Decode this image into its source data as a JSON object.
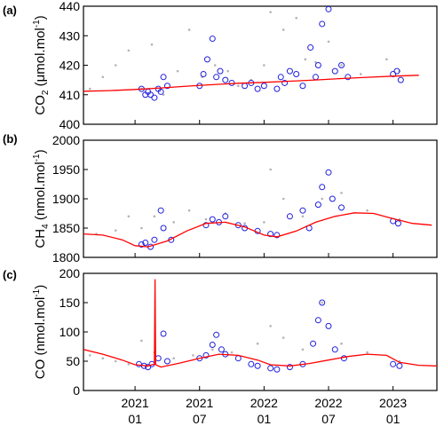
{
  "chart_data": [
    {
      "type": "scatter",
      "panel_label": "(a)",
      "ylabel_main": "CO",
      "ylabel_sub": "2",
      "ylabel_unit": "(μmol.mol",
      "ylabel_sup": "-1",
      "ylabel_close": ")",
      "ylim": [
        400,
        440
      ],
      "yticks": [
        400,
        410,
        420,
        430,
        440
      ],
      "series": [
        {
          "kind": "background",
          "color": "#b3b3b3",
          "marker": "dot",
          "x": [
            2020.65,
            2020.75,
            2020.85,
            2020.95,
            2021.05,
            2021.13,
            2021.22,
            2021.33,
            2021.42,
            2021.52,
            2021.62,
            2021.72,
            2021.8,
            2021.9,
            2022.0,
            2022.05,
            2022.15,
            2022.25,
            2022.32,
            2022.4,
            2022.5,
            2022.6,
            2022.75,
            2022.95,
            2023.05
          ],
          "y": [
            412,
            416,
            420,
            425,
            412,
            427,
            410,
            418,
            432,
            416,
            420,
            418,
            413,
            415,
            420,
            438,
            432,
            436,
            422,
            421,
            428,
            420,
            417,
            422,
            418
          ]
        },
        {
          "kind": "observations",
          "color": "#1f1fdd",
          "marker": "circle",
          "x": [
            2021.05,
            2021.08,
            2021.1,
            2021.12,
            2021.15,
            2021.18,
            2021.2,
            2021.22,
            2021.25,
            2021.5,
            2021.53,
            2021.56,
            2021.6,
            2021.63,
            2021.66,
            2021.7,
            2021.75,
            2021.85,
            2021.9,
            2021.95,
            2022.0,
            2022.1,
            2022.13,
            2022.16,
            2022.2,
            2022.25,
            2022.3,
            2022.36,
            2022.4,
            2022.42,
            2022.45,
            2022.5,
            2022.55,
            2022.6,
            2022.65,
            2023.0,
            2023.03,
            2023.06
          ],
          "y": [
            412,
            410,
            411,
            410,
            409,
            412,
            411,
            416,
            413,
            413,
            417,
            422,
            429,
            416,
            418,
            415,
            414,
            413,
            414,
            412,
            413,
            412,
            416,
            414,
            418,
            417,
            413,
            426,
            416,
            420,
            434,
            439,
            418,
            420,
            416,
            417,
            418,
            415
          ]
        },
        {
          "kind": "baseline",
          "color": "#ff0000",
          "marker": "line",
          "x": [
            2020.6,
            2020.8,
            2021.0,
            2021.2,
            2021.4,
            2021.6,
            2021.8,
            2022.0,
            2022.2,
            2022.4,
            2022.6,
            2022.8,
            2023.0,
            2023.2
          ],
          "y": [
            411.2,
            411.4,
            411.8,
            412.3,
            412.9,
            413.4,
            413.9,
            414.2,
            414.6,
            415.0,
            415.5,
            415.9,
            416.3,
            416.6
          ]
        }
      ]
    },
    {
      "type": "scatter",
      "panel_label": "(b)",
      "ylabel_main": "CH",
      "ylabel_sub": "4",
      "ylabel_unit": "(nmol.mol",
      "ylabel_sup": "-1",
      "ylabel_close": ")",
      "ylim": [
        1800,
        2000
      ],
      "yticks": [
        1800,
        1850,
        1900,
        1950,
        2000
      ],
      "series": [
        {
          "kind": "background",
          "color": "#b3b3b3",
          "marker": "dot",
          "x": [
            2020.7,
            2020.85,
            2020.95,
            2021.05,
            2021.15,
            2021.3,
            2021.42,
            2021.55,
            2021.7,
            2021.85,
            2022.0,
            2022.05,
            2022.15,
            2022.3,
            2022.45,
            2022.6,
            2022.8,
            2023.05
          ],
          "y": [
            1840,
            1846,
            1870,
            1850,
            1870,
            1860,
            1880,
            1865,
            1875,
            1858,
            1860,
            1950,
            1900,
            1870,
            1900,
            1910,
            1880,
            1865
          ]
        },
        {
          "kind": "observations",
          "color": "#1f1fdd",
          "marker": "circle",
          "x": [
            2021.05,
            2021.08,
            2021.12,
            2021.15,
            2021.2,
            2021.22,
            2021.28,
            2021.55,
            2021.6,
            2021.65,
            2021.7,
            2021.8,
            2021.85,
            2021.95,
            2022.05,
            2022.1,
            2022.2,
            2022.3,
            2022.35,
            2022.42,
            2022.45,
            2022.5,
            2022.53,
            2022.6,
            2023.0,
            2023.04
          ],
          "y": [
            1822,
            1825,
            1818,
            1830,
            1880,
            1850,
            1830,
            1855,
            1865,
            1860,
            1870,
            1855,
            1850,
            1845,
            1840,
            1838,
            1870,
            1880,
            1850,
            1890,
            1920,
            1945,
            1900,
            1885,
            1862,
            1858
          ]
        },
        {
          "kind": "baseline",
          "color": "#ff0000",
          "marker": "line",
          "x": [
            2020.6,
            2020.75,
            2020.9,
            2021.0,
            2021.1,
            2021.25,
            2021.4,
            2021.55,
            2021.7,
            2021.85,
            2022.0,
            2022.1,
            2022.25,
            2022.4,
            2022.55,
            2022.7,
            2022.85,
            2023.0,
            2023.15,
            2023.3
          ],
          "y": [
            1840,
            1838,
            1830,
            1820,
            1818,
            1828,
            1845,
            1858,
            1860,
            1852,
            1838,
            1835,
            1845,
            1860,
            1870,
            1876,
            1875,
            1866,
            1858,
            1855
          ]
        }
      ]
    },
    {
      "type": "scatter",
      "panel_label": "(c)",
      "ylabel_main": "CO",
      "ylabel_sub": "",
      "ylabel_unit": "(nmol.mol",
      "ylabel_sup": "-1",
      "ylabel_close": ")",
      "ylim": [
        0,
        200
      ],
      "yticks": [
        0,
        50,
        100,
        150,
        200
      ],
      "xticks": [
        {
          "x": 2021.0,
          "year": "2021",
          "month": "01"
        },
        {
          "x": 2021.5,
          "year": "2021",
          "month": "07"
        },
        {
          "x": 2022.0,
          "year": "2022",
          "month": "01"
        },
        {
          "x": 2022.5,
          "year": "2022",
          "month": "07"
        },
        {
          "x": 2023.0,
          "year": "2023",
          "month": "01"
        }
      ],
      "xlim": [
        2020.6,
        2023.34
      ],
      "series": [
        {
          "kind": "background",
          "color": "#b3b3b3",
          "marker": "dot",
          "x": [
            2020.65,
            2020.75,
            2020.85,
            2020.95,
            2021.05,
            2021.15,
            2021.3,
            2021.45,
            2021.6,
            2021.75,
            2021.95,
            2022.05,
            2022.15,
            2022.3,
            2022.45,
            2022.6,
            2022.8,
            2023.05
          ],
          "y": [
            60,
            55,
            50,
            45,
            85,
            65,
            55,
            60,
            70,
            65,
            80,
            110,
            90,
            70,
            150,
            80,
            65,
            50
          ]
        },
        {
          "kind": "observations",
          "color": "#1f1fdd",
          "marker": "circle",
          "x": [
            2021.03,
            2021.07,
            2021.1,
            2021.13,
            2021.18,
            2021.22,
            2021.25,
            2021.5,
            2021.55,
            2021.6,
            2021.63,
            2021.67,
            2021.7,
            2021.8,
            2021.9,
            2021.95,
            2022.05,
            2022.1,
            2022.2,
            2022.3,
            2022.38,
            2022.42,
            2022.45,
            2022.5,
            2022.55,
            2022.62,
            2023.0,
            2023.05
          ],
          "y": [
            45,
            42,
            40,
            45,
            55,
            97,
            50,
            55,
            60,
            78,
            95,
            70,
            62,
            55,
            45,
            42,
            38,
            36,
            40,
            45,
            80,
            120,
            150,
            110,
            70,
            55,
            45,
            42
          ]
        },
        {
          "kind": "baseline",
          "color": "#ff0000",
          "marker": "line",
          "x": [
            2020.6,
            2020.75,
            2020.9,
            2021.0,
            2021.1,
            2021.15,
            2021.155,
            2021.16,
            2021.2,
            2021.35,
            2021.5,
            2021.65,
            2021.8,
            2021.95,
            2022.05,
            2022.2,
            2022.35,
            2022.5,
            2022.65,
            2022.8,
            2022.95,
            2023.05,
            2023.2,
            2023.34
          ],
          "y": [
            70,
            62,
            52,
            44,
            42,
            45,
            190,
            44,
            40,
            47,
            55,
            62,
            60,
            52,
            44,
            42,
            46,
            52,
            58,
            62,
            60,
            48,
            43,
            42
          ]
        }
      ]
    }
  ]
}
